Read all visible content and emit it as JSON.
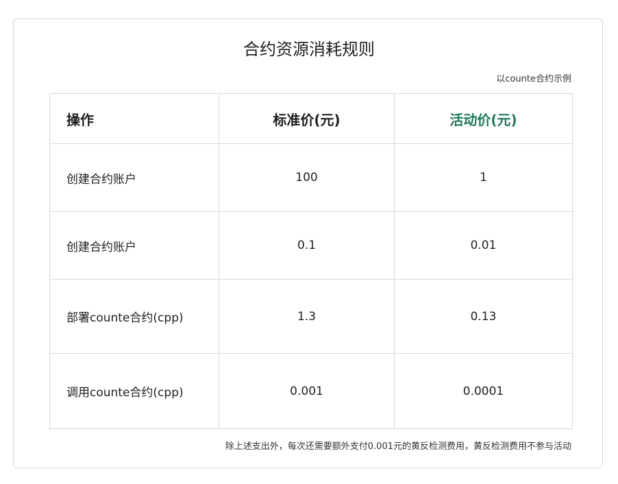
{
  "title": "合约资源消耗规则",
  "example_note": "以counte合约示例",
  "table": {
    "headers": {
      "operation": "操作",
      "standard_price": "标准价(元)",
      "activity_price": "活动价(元)"
    },
    "rows": [
      {
        "operation": "创建合约账户",
        "standard_price": "100",
        "activity_price": "1"
      },
      {
        "operation": "创建合约账户",
        "standard_price": "0.1",
        "activity_price": "0.01"
      },
      {
        "operation": "部署counte合约(cpp)",
        "standard_price": "1.3",
        "activity_price": "0.13"
      },
      {
        "operation": "调用counte合约(cpp)",
        "standard_price": "0.001",
        "activity_price": "0.0001"
      }
    ]
  },
  "footnote": "除上述支出外，每次还需要额外支付0.001元的黄反检测费用，黄反检测费用不参与活动",
  "colors": {
    "activity_header": "#1e7a5e",
    "border": "#d9d9d9"
  }
}
